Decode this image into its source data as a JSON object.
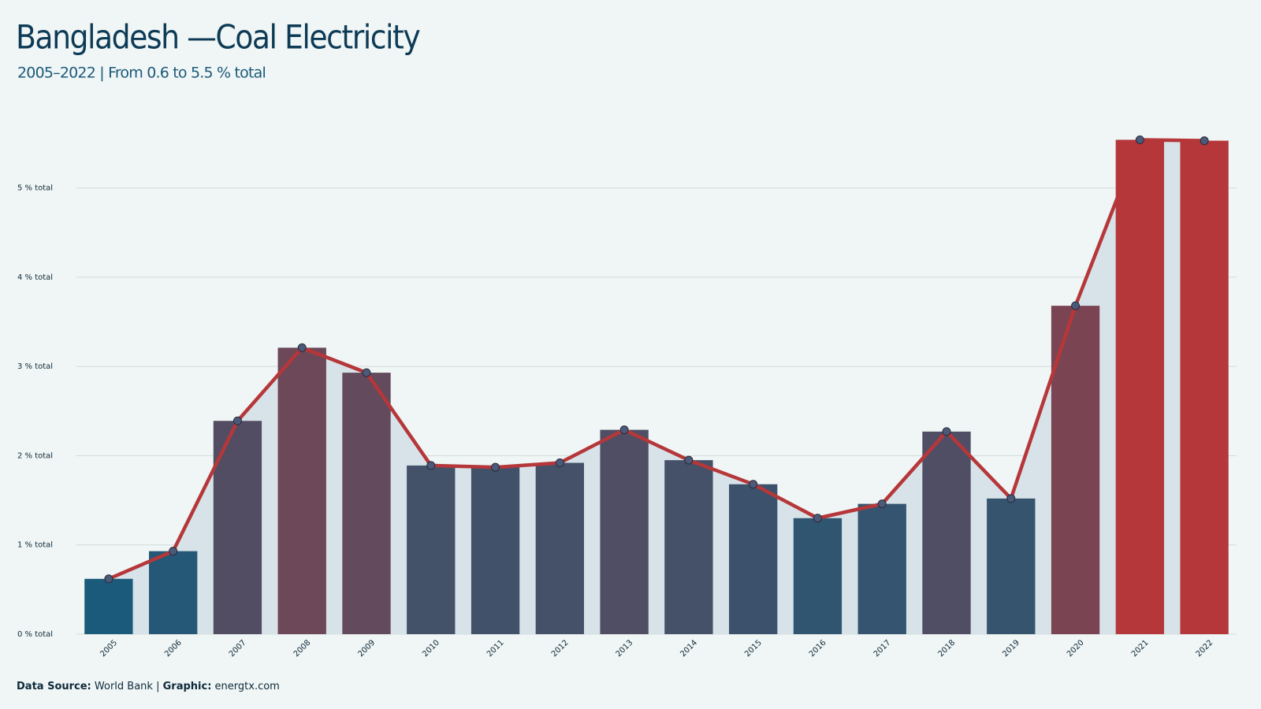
{
  "chart_data": {
    "type": "bar_line",
    "title": "Bangladesh  —Coal Electricity",
    "subtitle": "2005–2022 | From 0.6 to 5.5 % total",
    "categories": [
      "2005",
      "2006",
      "2007",
      "2008",
      "2009",
      "2010",
      "2011",
      "2012",
      "2013",
      "2014",
      "2015",
      "2016",
      "2017",
      "2018",
      "2019",
      "2020",
      "2021",
      "2022"
    ],
    "values": [
      0.62,
      0.93,
      2.39,
      3.21,
      2.93,
      1.89,
      1.87,
      1.92,
      2.29,
      1.95,
      1.68,
      1.3,
      1.46,
      2.27,
      1.52,
      3.68,
      5.54,
      5.53
    ],
    "ylim": [
      0,
      5.8
    ],
    "yticks": [
      {
        "value": 0,
        "label": "0 % total"
      },
      {
        "value": 1,
        "label": "1 % total"
      },
      {
        "value": 2,
        "label": "2 % total"
      },
      {
        "value": 3,
        "label": "3 % total"
      },
      {
        "value": 4,
        "label": "4 % total"
      },
      {
        "value": 5,
        "label": "5 % total"
      }
    ],
    "grid": true,
    "color_low": "#1b5a7a",
    "color_high": "#b5373a",
    "line_color": "#b5373a",
    "area_color": "#d8e3e9",
    "point_color": "#4a5a78",
    "footer": {
      "source_label": "Data Source:",
      "source": "World Bank",
      "separator": "|",
      "graphic_label": "Graphic:",
      "graphic": "energtx.com"
    }
  }
}
